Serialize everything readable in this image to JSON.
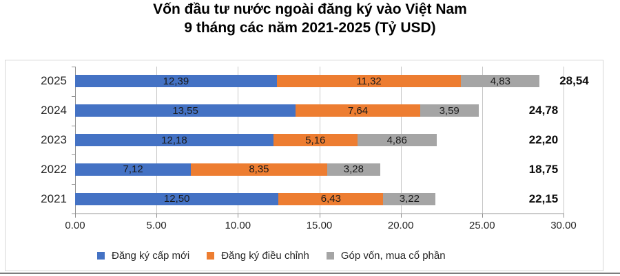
{
  "chart_data": {
    "type": "bar",
    "orientation": "horizontal-stacked",
    "title": "Vốn đầu tư nước ngoài đăng ký vào Việt Nam",
    "subtitle": "9 tháng các năm 2021-2025 (Tỷ USD)",
    "categories": [
      "2025",
      "2024",
      "2023",
      "2022",
      "2021"
    ],
    "series": [
      {
        "name": "Đăng ký cấp mới",
        "color": "#4472C4",
        "values": [
          12.39,
          13.55,
          12.18,
          7.12,
          12.5
        ],
        "labels": [
          "12,39",
          "13,55",
          "12,18",
          "7,12",
          "12,50"
        ]
      },
      {
        "name": "Đăng ký điều chỉnh",
        "color": "#ED7D31",
        "values": [
          11.32,
          7.64,
          5.16,
          8.35,
          6.43
        ],
        "labels": [
          "11,32",
          "7,64",
          "5,16",
          "8,35",
          "6,43"
        ]
      },
      {
        "name": "Góp vốn, mua cổ phần",
        "color": "#A5A5A5",
        "values": [
          4.83,
          3.59,
          4.86,
          3.28,
          3.22
        ],
        "labels": [
          "4,83",
          "3,59",
          "4,86",
          "3,28",
          "3,22"
        ]
      }
    ],
    "totals": {
      "values": [
        28.54,
        24.78,
        22.2,
        18.75,
        22.15
      ],
      "labels": [
        "28,54",
        "24,78",
        "22,20",
        "18,75",
        "22,15"
      ]
    },
    "x_axis": {
      "min": 0,
      "max": 30,
      "tick_step": 5,
      "tick_values": [
        0,
        5,
        10,
        15,
        20,
        25,
        30
      ],
      "tick_labels": [
        "0.00",
        "5.00",
        "10.00",
        "15.00",
        "20.00",
        "25.00",
        "30.00"
      ]
    },
    "grid": "vertical",
    "legend_position": "bottom"
  }
}
